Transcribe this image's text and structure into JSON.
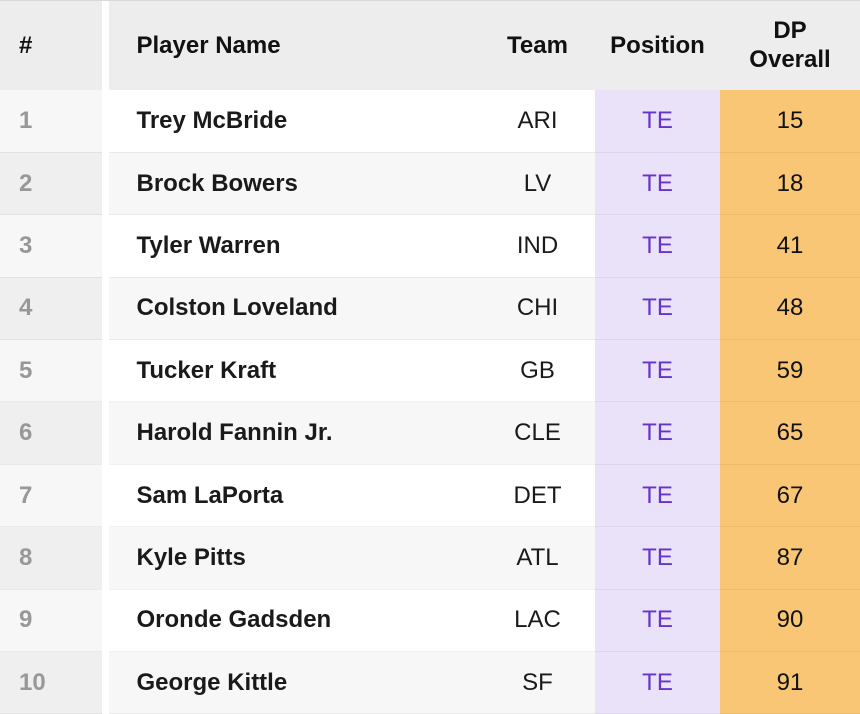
{
  "table": {
    "headers": {
      "rank": "#",
      "player": "Player Name",
      "team": "Team",
      "position": "Position",
      "dp_overall": "DP Overall"
    },
    "rows": [
      {
        "rank": "1",
        "player": "Trey McBride",
        "team": "ARI",
        "position": "TE",
        "dp_overall": "15"
      },
      {
        "rank": "2",
        "player": "Brock Bowers",
        "team": "LV",
        "position": "TE",
        "dp_overall": "18"
      },
      {
        "rank": "3",
        "player": "Tyler Warren",
        "team": "IND",
        "position": "TE",
        "dp_overall": "41"
      },
      {
        "rank": "4",
        "player": "Colston Loveland",
        "team": "CHI",
        "position": "TE",
        "dp_overall": "48"
      },
      {
        "rank": "5",
        "player": "Tucker Kraft",
        "team": "GB",
        "position": "TE",
        "dp_overall": "59"
      },
      {
        "rank": "6",
        "player": "Harold Fannin Jr.",
        "team": "CLE",
        "position": "TE",
        "dp_overall": "65"
      },
      {
        "rank": "7",
        "player": "Sam LaPorta",
        "team": "DET",
        "position": "TE",
        "dp_overall": "67"
      },
      {
        "rank": "8",
        "player": "Kyle Pitts",
        "team": "ATL",
        "position": "TE",
        "dp_overall": "87"
      },
      {
        "rank": "9",
        "player": "Oronde Gadsden",
        "team": "LAC",
        "position": "TE",
        "dp_overall": "90"
      },
      {
        "rank": "10",
        "player": "George Kittle",
        "team": "SF",
        "position": "TE",
        "dp_overall": "91"
      }
    ]
  },
  "colors": {
    "header_bg": "#EDEDED",
    "row_alt_bg": "#F7F7F7",
    "rank_text": "#989898",
    "position_col_bg": "#EAE2F8",
    "position_text": "#6633CC",
    "dp_col_bg": "#F8C674"
  }
}
